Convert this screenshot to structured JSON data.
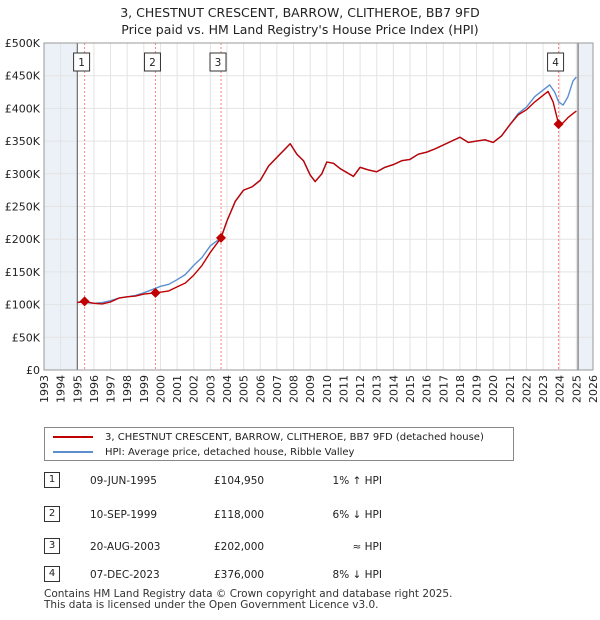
{
  "title": {
    "line1": "3, CHESTNUT CRESCENT, BARROW, CLITHEROE, BB7 9FD",
    "line2": "Price paid vs. HM Land Registry's House Price Index (HPI)"
  },
  "colors": {
    "price_line": "#c00000",
    "hpi_line": "#5b8fd0",
    "marker": "#c00000",
    "event_line": "#ff8080",
    "shade": "#dde6f3"
  },
  "chart_data": {
    "type": "line",
    "title": "3, CHESTNUT CRESCENT, BARROW, CLITHEROE, BB7 9FD — Price paid vs. HM Land Registry's House Price Index (HPI)",
    "xlim": [
      1993,
      2026
    ],
    "ylim": [
      0,
      500000
    ],
    "x_ticks": [
      1993,
      1994,
      1995,
      1996,
      1997,
      1998,
      1999,
      2000,
      2001,
      2002,
      2003,
      2004,
      2005,
      2006,
      2007,
      2008,
      2009,
      2010,
      2011,
      2012,
      2013,
      2014,
      2015,
      2016,
      2017,
      2018,
      2019,
      2020,
      2021,
      2022,
      2023,
      2024,
      2025,
      2026
    ],
    "y_ticks": [
      {
        "value": 0,
        "label": "£0"
      },
      {
        "value": 50000,
        "label": "£50K"
      },
      {
        "value": 100000,
        "label": "£100K"
      },
      {
        "value": 150000,
        "label": "£150K"
      },
      {
        "value": 200000,
        "label": "£200K"
      },
      {
        "value": 250000,
        "label": "£250K"
      },
      {
        "value": 300000,
        "label": "£300K"
      },
      {
        "value": 350000,
        "label": "£350K"
      },
      {
        "value": 400000,
        "label": "£400K"
      },
      {
        "value": 450000,
        "label": "£450K"
      },
      {
        "value": 500000,
        "label": "£500K"
      }
    ],
    "shaded_ranges": [
      [
        1993,
        1995.0
      ],
      [
        2025.1,
        2026
      ]
    ],
    "series": [
      {
        "name": "3, CHESTNUT CRESCENT, BARROW, CLITHEROE, BB7 9FD (detached house)",
        "color": "#c00000",
        "points": [
          [
            1995.0,
            103000
          ],
          [
            1995.44,
            104950
          ],
          [
            1996.0,
            102000
          ],
          [
            1996.5,
            101000
          ],
          [
            1997.0,
            104000
          ],
          [
            1997.5,
            110000
          ],
          [
            1998.0,
            112000
          ],
          [
            1998.5,
            113000
          ],
          [
            1999.0,
            116000
          ],
          [
            1999.7,
            118000
          ],
          [
            2000.0,
            119000
          ],
          [
            2000.5,
            121000
          ],
          [
            2001.0,
            127000
          ],
          [
            2001.5,
            133000
          ],
          [
            2002.0,
            145000
          ],
          [
            2002.5,
            160000
          ],
          [
            2003.0,
            180000
          ],
          [
            2003.64,
            202000
          ],
          [
            2004.0,
            228000
          ],
          [
            2004.5,
            258000
          ],
          [
            2005.0,
            275000
          ],
          [
            2005.5,
            280000
          ],
          [
            2006.0,
            290000
          ],
          [
            2006.5,
            312000
          ],
          [
            2007.0,
            325000
          ],
          [
            2007.5,
            338000
          ],
          [
            2007.8,
            346000
          ],
          [
            2008.2,
            330000
          ],
          [
            2008.6,
            320000
          ],
          [
            2009.0,
            298000
          ],
          [
            2009.3,
            288000
          ],
          [
            2009.7,
            300000
          ],
          [
            2010.0,
            318000
          ],
          [
            2010.4,
            316000
          ],
          [
            2010.8,
            308000
          ],
          [
            2011.2,
            302000
          ],
          [
            2011.6,
            296000
          ],
          [
            2012.0,
            310000
          ],
          [
            2012.5,
            306000
          ],
          [
            2013.0,
            303000
          ],
          [
            2013.5,
            310000
          ],
          [
            2014.0,
            314000
          ],
          [
            2014.5,
            320000
          ],
          [
            2015.0,
            322000
          ],
          [
            2015.5,
            330000
          ],
          [
            2016.0,
            333000
          ],
          [
            2016.5,
            338000
          ],
          [
            2017.0,
            344000
          ],
          [
            2017.5,
            350000
          ],
          [
            2018.0,
            356000
          ],
          [
            2018.5,
            348000
          ],
          [
            2019.0,
            350000
          ],
          [
            2019.5,
            352000
          ],
          [
            2020.0,
            348000
          ],
          [
            2020.5,
            358000
          ],
          [
            2021.0,
            375000
          ],
          [
            2021.5,
            390000
          ],
          [
            2022.0,
            398000
          ],
          [
            2022.5,
            410000
          ],
          [
            2023.0,
            420000
          ],
          [
            2023.3,
            426000
          ],
          [
            2023.6,
            410000
          ],
          [
            2023.93,
            376000
          ],
          [
            2024.2,
            378000
          ],
          [
            2024.5,
            386000
          ],
          [
            2024.8,
            392000
          ],
          [
            2025.0,
            396000
          ]
        ]
      },
      {
        "name": "HPI: Average price, detached house, Ribble Valley",
        "color": "#5b8fd0",
        "points": [
          [
            1995.0,
            104000
          ],
          [
            1995.5,
            103000
          ],
          [
            1996.0,
            102000
          ],
          [
            1996.5,
            103000
          ],
          [
            1997.0,
            106000
          ],
          [
            1997.5,
            110000
          ],
          [
            1998.0,
            112000
          ],
          [
            1998.5,
            114000
          ],
          [
            1999.0,
            118000
          ],
          [
            1999.7,
            125000
          ],
          [
            2000.0,
            128000
          ],
          [
            2000.5,
            131000
          ],
          [
            2001.0,
            138000
          ],
          [
            2001.5,
            146000
          ],
          [
            2002.0,
            160000
          ],
          [
            2002.5,
            172000
          ],
          [
            2003.0,
            190000
          ],
          [
            2003.64,
            202000
          ],
          [
            2004.0,
            228000
          ],
          [
            2004.5,
            258000
          ],
          [
            2005.0,
            275000
          ],
          [
            2005.5,
            280000
          ],
          [
            2006.0,
            290000
          ],
          [
            2006.5,
            312000
          ],
          [
            2007.0,
            325000
          ],
          [
            2007.5,
            338000
          ],
          [
            2007.8,
            346000
          ],
          [
            2008.2,
            330000
          ],
          [
            2008.6,
            320000
          ],
          [
            2009.0,
            298000
          ],
          [
            2009.3,
            288000
          ],
          [
            2009.7,
            300000
          ],
          [
            2010.0,
            318000
          ],
          [
            2010.4,
            316000
          ],
          [
            2010.8,
            308000
          ],
          [
            2011.2,
            302000
          ],
          [
            2011.6,
            296000
          ],
          [
            2012.0,
            310000
          ],
          [
            2012.5,
            306000
          ],
          [
            2013.0,
            303000
          ],
          [
            2013.5,
            310000
          ],
          [
            2014.0,
            314000
          ],
          [
            2014.5,
            320000
          ],
          [
            2015.0,
            322000
          ],
          [
            2015.5,
            330000
          ],
          [
            2016.0,
            333000
          ],
          [
            2016.5,
            338000
          ],
          [
            2017.0,
            344000
          ],
          [
            2017.5,
            350000
          ],
          [
            2018.0,
            356000
          ],
          [
            2018.5,
            348000
          ],
          [
            2019.0,
            350000
          ],
          [
            2019.5,
            352000
          ],
          [
            2020.0,
            348000
          ],
          [
            2020.5,
            358000
          ],
          [
            2021.0,
            375000
          ],
          [
            2021.5,
            392000
          ],
          [
            2022.0,
            402000
          ],
          [
            2022.5,
            418000
          ],
          [
            2023.0,
            428000
          ],
          [
            2023.4,
            436000
          ],
          [
            2023.7,
            425000
          ],
          [
            2023.93,
            410000
          ],
          [
            2024.2,
            405000
          ],
          [
            2024.5,
            418000
          ],
          [
            2024.8,
            442000
          ],
          [
            2025.0,
            448000
          ]
        ]
      }
    ],
    "events": [
      {
        "label": "1",
        "x": 1995.44,
        "price": 104950
      },
      {
        "label": "2",
        "x": 1999.7,
        "price": 118000
      },
      {
        "label": "3",
        "x": 2003.64,
        "price": 202000
      },
      {
        "label": "4",
        "x": 2023.93,
        "price": 376000
      }
    ]
  },
  "legend": {
    "items": [
      {
        "label": "3, CHESTNUT CRESCENT, BARROW, CLITHEROE, BB7 9FD (detached house)",
        "color": "#c00000"
      },
      {
        "label": "HPI: Average price, detached house, Ribble Valley",
        "color": "#5b8fd0"
      }
    ]
  },
  "transactions": [
    {
      "num": "1",
      "date": "09-JUN-1995",
      "price": "£104,950",
      "hpi": "1% ↑ HPI"
    },
    {
      "num": "2",
      "date": "10-SEP-1999",
      "price": "£118,000",
      "hpi": "6% ↓ HPI"
    },
    {
      "num": "3",
      "date": "20-AUG-2003",
      "price": "£202,000",
      "hpi": "≈ HPI"
    },
    {
      "num": "4",
      "date": "07-DEC-2023",
      "price": "£376,000",
      "hpi": "8% ↓ HPI"
    }
  ],
  "footer": {
    "line1": "Contains HM Land Registry data © Crown copyright and database right 2025.",
    "line2": "This data is licensed under the Open Government Licence v3.0."
  }
}
